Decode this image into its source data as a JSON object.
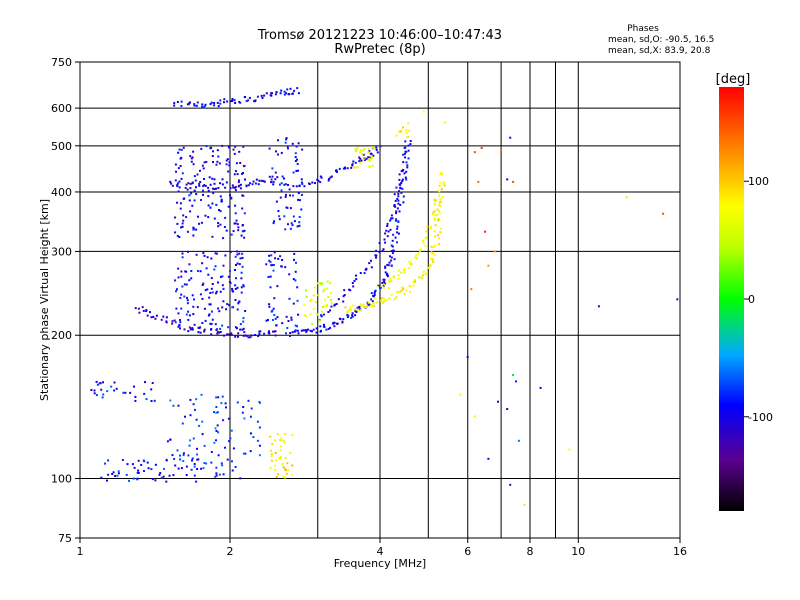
{
  "header": {
    "title_line1": "Tromsø 20121223 10:46:00–10:47:43",
    "title_line2": "RwPretec (8p)",
    "stats_title": "Phases",
    "stats_o": "mean, sd,O: -90.5, 16.5",
    "stats_x": "mean, sd,X:  83.9, 20.8"
  },
  "chart_data": {
    "type": "scatter",
    "xlabel": "Frequency [MHz]",
    "ylabel": "Stationary phase Virtual Height [km]",
    "xscale": "log",
    "yscale": "log",
    "xlim": [
      1,
      16
    ],
    "ylim": [
      75,
      750
    ],
    "x_ticks": [
      1,
      2,
      4,
      6,
      8,
      10,
      16
    ],
    "x_tick_labels": [
      "1",
      "2",
      "4",
      "6",
      "8",
      "10",
      "16"
    ],
    "x_minor": [
      3,
      5,
      7,
      9
    ],
    "y_ticks": [
      75,
      100,
      200,
      300,
      400,
      500,
      600,
      750
    ],
    "y_tick_labels": [
      "75",
      "100",
      "200",
      "300",
      "400",
      "500",
      "600",
      "750"
    ],
    "grid": true,
    "colorbar": {
      "label": "[deg]",
      "range": [
        -180,
        180
      ],
      "ticks": [
        100,
        0,
        -100
      ],
      "tick_labels": [
        "100",
        "0",
        "-100"
      ]
    },
    "series": [
      {
        "mode": "O",
        "traces": [
          {
            "phase": -95,
            "points": [
              [
                2.6,
                201
              ],
              [
                2.8,
                203
              ],
              [
                3.0,
                206
              ],
              [
                3.2,
                210
              ],
              [
                3.4,
                216
              ],
              [
                3.6,
                224
              ],
              [
                3.8,
                236
              ],
              [
                4.0,
                252
              ],
              [
                4.1,
                265
              ],
              [
                4.2,
                285
              ],
              [
                4.28,
                310
              ],
              [
                4.35,
                345
              ],
              [
                4.42,
                390
              ],
              [
                4.48,
                440
              ],
              [
                4.52,
                480
              ],
              [
                4.55,
                510
              ]
            ]
          },
          {
            "phase": -100,
            "points": [
              [
                3.0,
                215
              ],
              [
                3.3,
                235
              ],
              [
                3.6,
                260
              ],
              [
                3.9,
                290
              ],
              [
                4.1,
                320
              ],
              [
                4.25,
                360
              ],
              [
                4.35,
                400
              ],
              [
                4.45,
                450
              ]
            ]
          },
          {
            "phase": -95,
            "points": [
              [
                1.55,
                612
              ],
              [
                1.7,
                608
              ],
              [
                1.85,
                612
              ],
              [
                2.0,
                620
              ],
              [
                2.2,
                628
              ],
              [
                2.4,
                638
              ],
              [
                2.6,
                648
              ],
              [
                2.75,
                655
              ]
            ]
          },
          {
            "phase": -100,
            "points": [
              [
                1.5,
                415
              ],
              [
                1.7,
                412
              ],
              [
                1.9,
                412
              ],
              [
                2.1,
                415
              ],
              [
                2.3,
                420
              ],
              [
                2.5,
                428
              ]
            ]
          },
          {
            "phase": -100,
            "points": [
              [
                2.7,
                405
              ],
              [
                3.0,
                420
              ],
              [
                3.3,
                440
              ],
              [
                3.6,
                462
              ],
              [
                3.8,
                478
              ],
              [
                4.0,
                495
              ]
            ]
          },
          {
            "phase": -110,
            "points": [
              [
                1.3,
                228
              ],
              [
                1.4,
                220
              ],
              [
                1.55,
                212
              ],
              [
                1.7,
                205
              ],
              [
                1.9,
                202
              ],
              [
                2.1,
                201
              ],
              [
                2.3,
                201
              ],
              [
                2.5,
                202
              ]
            ]
          }
        ],
        "clusters": [
          {
            "phase": -100,
            "x": [
              1.55,
              2.15
            ],
            "y": [
              320,
              500
            ],
            "n": 170
          },
          {
            "phase": -95,
            "x": [
              2.4,
              2.8
            ],
            "y": [
              330,
              520
            ],
            "n": 70
          },
          {
            "phase": -95,
            "x": [
              1.55,
              2.15
            ],
            "y": [
              205,
              300
            ],
            "n": 150
          },
          {
            "phase": -90,
            "x": [
              2.35,
              2.75
            ],
            "y": [
              205,
              300
            ],
            "n": 55
          },
          {
            "phase": -85,
            "x": [
              1.1,
              2.1
            ],
            "y": [
              98,
              110
            ],
            "n": 80
          },
          {
            "phase": -80,
            "x": [
              1.5,
              2.3
            ],
            "y": [
              110,
              150
            ],
            "n": 75
          },
          {
            "phase": -90,
            "x": [
              1.05,
              1.42
            ],
            "y": [
              145,
              160
            ],
            "n": 30
          }
        ]
      },
      {
        "mode": "X",
        "traces": [
          {
            "phase": 82,
            "points": [
              [
                3.4,
                225
              ],
              [
                3.6,
                228
              ],
              [
                3.8,
                232
              ],
              [
                4.0,
                236
              ],
              [
                4.3,
                243
              ],
              [
                4.6,
                252
              ],
              [
                4.9,
                268
              ],
              [
                5.1,
                290
              ],
              [
                5.2,
                320
              ],
              [
                5.28,
                360
              ],
              [
                5.32,
                400
              ],
              [
                5.35,
                440
              ]
            ]
          },
          {
            "phase": 78,
            "points": [
              [
                4.0,
                250
              ],
              [
                4.3,
                262
              ],
              [
                4.6,
                280
              ],
              [
                4.9,
                310
              ],
              [
                5.1,
                350
              ],
              [
                5.25,
                395
              ]
            ]
          }
        ],
        "clusters": [
          {
            "phase": 85,
            "x": [
              2.4,
              2.7
            ],
            "y": [
              100,
              125
            ],
            "n": 40
          },
          {
            "phase": 60,
            "x": [
              2.8,
              3.2
            ],
            "y": [
              210,
              260
            ],
            "n": 40
          },
          {
            "phase": 75,
            "x": [
              3.55,
              3.9
            ],
            "y": [
              450,
              500
            ],
            "n": 25
          },
          {
            "phase": 80,
            "x": [
              4.3,
              4.6
            ],
            "y": [
              520,
              560
            ],
            "n": 12
          }
        ]
      },
      {
        "mode": "noise",
        "points": [
          [
            6.2,
            485,
            150
          ],
          [
            6.4,
            495,
            160
          ],
          [
            6.3,
            420,
            140
          ],
          [
            6.5,
            330,
            170
          ],
          [
            6.6,
            280,
            120
          ],
          [
            6.1,
            250,
            130
          ],
          [
            7.3,
            520,
            -100
          ],
          [
            7.2,
            425,
            -90
          ],
          [
            7.4,
            420,
            150
          ],
          [
            7.5,
            160,
            -80
          ],
          [
            7.4,
            165,
            -20
          ],
          [
            7.6,
            120,
            -60
          ],
          [
            7.2,
            140,
            -110
          ],
          [
            7.3,
            97,
            -120
          ],
          [
            7.8,
            88,
            60
          ],
          [
            6.9,
            145,
            -100
          ],
          [
            6.6,
            110,
            -90
          ],
          [
            6.2,
            135,
            60
          ],
          [
            8.4,
            155,
            -90
          ],
          [
            9.6,
            115,
            70
          ],
          [
            11.0,
            230,
            -110
          ],
          [
            12.5,
            390,
            90
          ],
          [
            14.8,
            360,
            150
          ],
          [
            15.8,
            238,
            -110
          ],
          [
            7.0,
            490,
            140
          ],
          [
            6.8,
            300,
            120
          ],
          [
            5.8,
            150,
            60
          ],
          [
            6.0,
            180,
            -100
          ],
          [
            5.4,
            560,
            70
          ],
          [
            4.9,
            590,
            80
          ]
        ]
      }
    ]
  }
}
